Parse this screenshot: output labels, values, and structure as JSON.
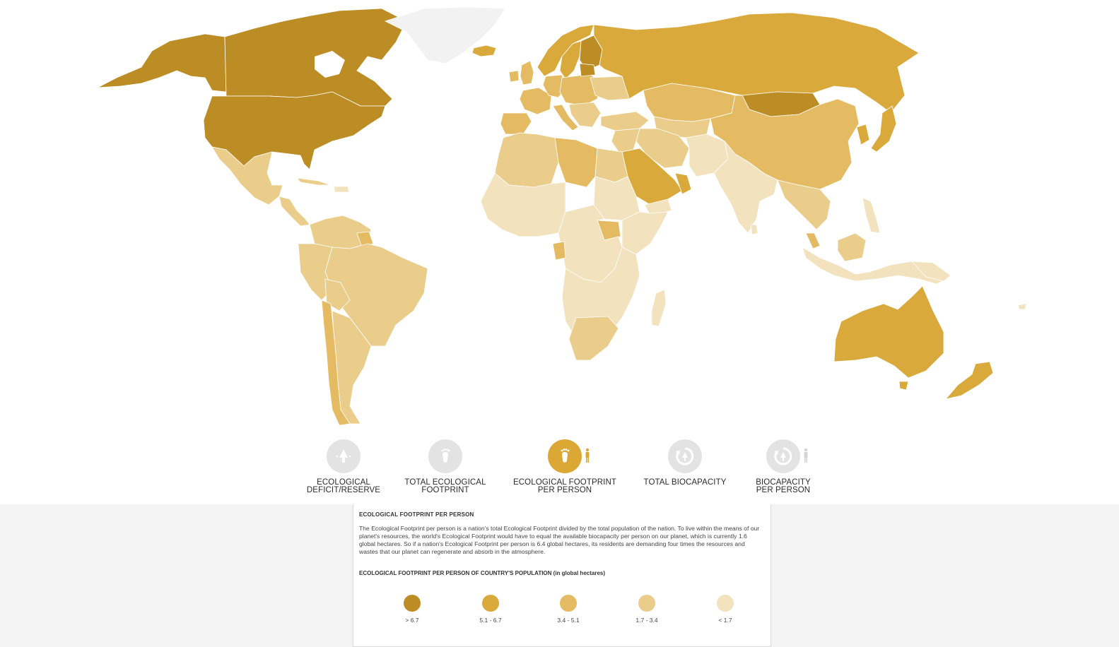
{
  "legend_colors": {
    "gt_6_7": "#bd8d25",
    "r_5_1_6_7": "#daa93c",
    "r_3_4_5_1": "#e4bb62",
    "r_1_7_3_4": "#eacd8b",
    "lt_1_7": "#f2e2bd",
    "no_data": "#f2f2f2"
  },
  "tabs": [
    {
      "label_line1": "ECOLOGICAL",
      "label_line2": "DEFICIT/RESERVE",
      "icon": "tree-balance-icon",
      "active": false
    },
    {
      "label_line1": "TOTAL ECOLOGICAL",
      "label_line2": "FOOTPRINT",
      "icon": "footprint-icon",
      "active": false
    },
    {
      "label_line1": "ECOLOGICAL FOOTPRINT",
      "label_line2": "PER PERSON",
      "icon": "footprint-person-icon",
      "active": true
    },
    {
      "label_line1": "TOTAL BIOCAPACITY",
      "label_line2": "",
      "icon": "biocapacity-icon",
      "active": false
    },
    {
      "label_line1": "BIOCAPACITY",
      "label_line2": "PER PERSON",
      "icon": "biocapacity-person-icon",
      "active": false
    }
  ],
  "panel": {
    "title": "ECOLOGICAL FOOTPRINT PER PERSON",
    "description": "The Ecological Footprint per person is a nation's total Ecological Footprint divided by the total population of the nation. To live within the means of our planet's resources, the world's Ecological Footprint would have to equal the available biocapacity per person on our planet, which is currently 1.6 global hectares. So if a nation's Ecological Footprint per person is 6.4 global hectares, its residents are demanding four times the resources and wastes that our planet can regenerate and absorb in the atmosphere.",
    "legend_title": "ECOLOGICAL FOOTPRINT PER PERSON OF COUNTRY'S POPULATION (in global hectares)",
    "legend": [
      {
        "range": "> 6.7",
        "color": "#bd8d25"
      },
      {
        "range": "5.1 - 6.7",
        "color": "#daa93c"
      },
      {
        "range": "3.4 - 5.1",
        "color": "#e4bb62"
      },
      {
        "range": "1.7 - 3.4",
        "color": "#eacd8b"
      },
      {
        "range": "< 1.7",
        "color": "#f2e2bd"
      }
    ]
  }
}
